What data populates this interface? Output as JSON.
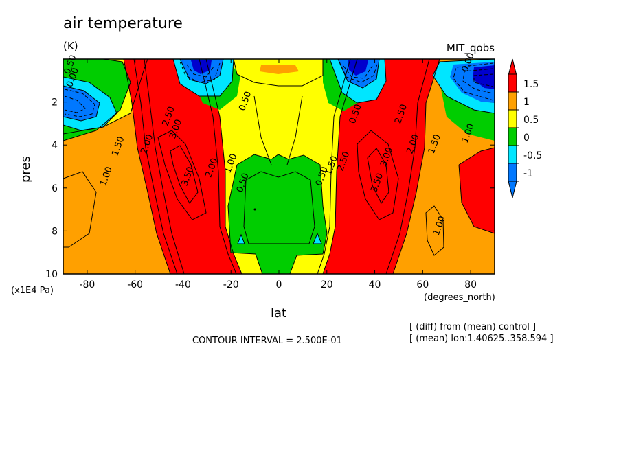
{
  "chart_data": {
    "type": "heatmap",
    "title": "air temperature",
    "units": "(K)",
    "dataset": "MIT_qobs",
    "xlabel": "lat",
    "xunits": "(degrees_north)",
    "ylabel": "pres",
    "yunits": "(x1E4 Pa)",
    "xlim": [
      -90,
      90
    ],
    "ylim": [
      10,
      0
    ],
    "x_ticks": [
      -80,
      -60,
      -40,
      -20,
      0,
      20,
      40,
      60,
      80
    ],
    "y_ticks": [
      2,
      4,
      6,
      8,
      10
    ],
    "contour_interval_text": "CONTOUR INTERVAL = 2.500E-01",
    "notes": [
      "[ (diff) from (mean) control ]",
      "[ (mean) lon:1.40625..358.594 ]"
    ],
    "colorbar": {
      "tick_labels": [
        "1.5",
        "1",
        "0.5",
        "0",
        "-0.5",
        "-1"
      ],
      "colors": [
        "#ff0000",
        "#ffa000",
        "#ffff00",
        "#00cd00",
        "#00e6ff",
        "#0078ff",
        "#0000cd",
        "#bebebe"
      ]
    },
    "contour_labels": [
      {
        "lat": -86,
        "p": 0.3,
        "text": "0.50"
      },
      {
        "lat": -85,
        "p": 0.9,
        "text": "0.00"
      },
      {
        "lat": -66,
        "p": 4.1,
        "text": "1.50"
      },
      {
        "lat": -71,
        "p": 5.5,
        "text": "1.00"
      },
      {
        "lat": -54,
        "p": 4.0,
        "text": "2.00"
      },
      {
        "lat": -45,
        "p": 2.7,
        "text": "2.50"
      },
      {
        "lat": -42,
        "p": 3.3,
        "text": "3.00"
      },
      {
        "lat": -37,
        "p": 5.5,
        "text": "3.50"
      },
      {
        "lat": -27,
        "p": 5.1,
        "text": "2.00"
      },
      {
        "lat": -19,
        "p": 4.9,
        "text": "1.00"
      },
      {
        "lat": -14,
        "p": 5.8,
        "text": "0.50"
      },
      {
        "lat": -13,
        "p": 2.0,
        "text": "0.50"
      },
      {
        "lat": 19,
        "p": 5.5,
        "text": "0.50"
      },
      {
        "lat": 23,
        "p": 5.0,
        "text": "1.50"
      },
      {
        "lat": 28,
        "p": 4.8,
        "text": "2.50"
      },
      {
        "lat": 33,
        "p": 2.6,
        "text": "0.50"
      },
      {
        "lat": 42,
        "p": 5.8,
        "text": "3.50"
      },
      {
        "lat": 46,
        "p": 4.6,
        "text": "3.00"
      },
      {
        "lat": 52,
        "p": 2.6,
        "text": "2.50"
      },
      {
        "lat": 57,
        "p": 4.0,
        "text": "2.00"
      },
      {
        "lat": 66,
        "p": 4.0,
        "text": "1.50"
      },
      {
        "lat": 80,
        "p": 3.5,
        "text": "1.00"
      },
      {
        "lat": 68,
        "p": 7.8,
        "text": "1.00"
      },
      {
        "lat": 80,
        "p": 0.2,
        "text": "0.00"
      }
    ]
  }
}
